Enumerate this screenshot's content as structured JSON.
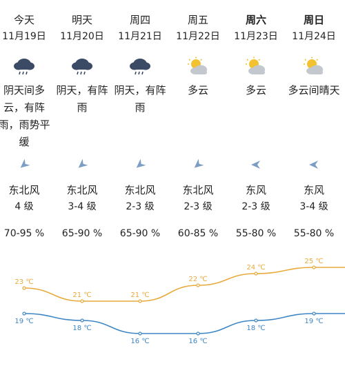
{
  "days": [
    {
      "name": "今天",
      "date": "11月19日",
      "icon": "rain-cloud-icon",
      "desc": [
        "阴天间多",
        "云，有阵",
        "雨，雨势平",
        "缓"
      ],
      "wind_icon": "wind-arrow-northeast-icon",
      "wind": "东北风",
      "level": "4 级",
      "humidity": "70-95 %",
      "bold": false
    },
    {
      "name": "明天",
      "date": "11月20日",
      "icon": "rain-cloud-icon",
      "desc": [
        "阴天，有阵",
        "雨"
      ],
      "wind_icon": "wind-arrow-northeast-icon",
      "wind": "东北风",
      "level": "3-4 级",
      "humidity": "65-90 %",
      "bold": false
    },
    {
      "name": "周四",
      "date": "11月21日",
      "icon": "rain-cloud-icon",
      "desc": [
        "阴天，有阵",
        "雨"
      ],
      "wind_icon": "wind-arrow-northeast-icon",
      "wind": "东北风",
      "level": "2-3 级",
      "humidity": "65-90 %",
      "bold": false
    },
    {
      "name": "周五",
      "date": "11月22日",
      "icon": "partly-cloudy-icon",
      "desc": [
        "多云"
      ],
      "wind_icon": "wind-arrow-northeast-icon",
      "wind": "东北风",
      "level": "2-3 级",
      "humidity": "60-85 %",
      "bold": false
    },
    {
      "name": "周六",
      "date": "11月23日",
      "icon": "partly-cloudy-icon",
      "desc": [
        "多云"
      ],
      "wind_icon": "wind-arrow-east-icon",
      "wind": "东风",
      "level": "2-3 级",
      "humidity": "55-80 %",
      "bold": true
    },
    {
      "name": "周日",
      "date": "11月24日",
      "icon": "partly-cloudy-icon",
      "desc": [
        "多云间晴天"
      ],
      "wind_icon": "wind-arrow-east-icon",
      "wind": "东风",
      "level": "3-4 级",
      "humidity": "55-80 %",
      "bold": true
    }
  ],
  "temps": {
    "high": [
      23,
      21,
      21,
      22,
      24,
      25
    ],
    "low": [
      19,
      18,
      16,
      16,
      18,
      19
    ],
    "unit": "℃",
    "high_color": "#e8a93a",
    "low_color": "#3d86c6"
  }
}
